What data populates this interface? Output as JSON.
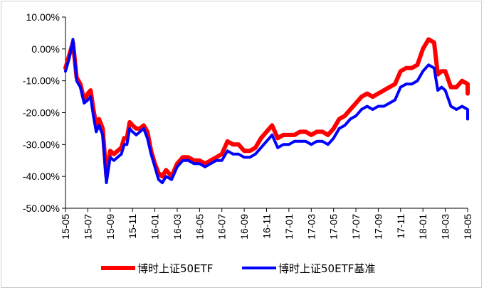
{
  "chart_data": {
    "type": "line",
    "title": "",
    "xlabel": "",
    "ylabel": "",
    "ylim": [
      -0.5,
      0.1
    ],
    "y_ticks": [
      "10.00%",
      "0.00%",
      "-10.00%",
      "-20.00%",
      "-30.00%",
      "-40.00%",
      "-50.00%"
    ],
    "x_ticks": [
      "15-05",
      "15-07",
      "15-09",
      "15-11",
      "16-01",
      "16-03",
      "16-05",
      "16-07",
      "16-09",
      "16-11",
      "17-01",
      "17-03",
      "17-05",
      "17-07",
      "17-09",
      "17-11",
      "18-01",
      "18-03",
      "18-05"
    ],
    "grid": false,
    "legend_position": "bottom",
    "series": [
      {
        "name": "博时上证50ETF",
        "color": "#ff0000",
        "points": [
          [
            "15-05",
            -0.06
          ],
          [
            "15-05",
            -0.02
          ],
          [
            "15-05",
            0.02
          ],
          [
            "15-06",
            -0.09
          ],
          [
            "15-06",
            -0.11
          ],
          [
            "15-06",
            -0.16
          ],
          [
            "15-07",
            -0.14
          ],
          [
            "15-07",
            -0.13
          ],
          [
            "15-07",
            -0.19
          ],
          [
            "15-07",
            -0.24
          ],
          [
            "15-08",
            -0.22
          ],
          [
            "15-08",
            -0.25
          ],
          [
            "15-08",
            -0.4
          ],
          [
            "15-09",
            -0.32
          ],
          [
            "15-09",
            -0.33
          ],
          [
            "15-09",
            -0.32
          ],
          [
            "15-10",
            -0.31
          ],
          [
            "15-10",
            -0.28
          ],
          [
            "15-10",
            -0.28
          ],
          [
            "15-10",
            -0.23
          ],
          [
            "15-11",
            -0.24
          ],
          [
            "15-11",
            -0.25
          ],
          [
            "15-11",
            -0.25
          ],
          [
            "15-12",
            -0.24
          ],
          [
            "15-12",
            -0.26
          ],
          [
            "15-12",
            -0.32
          ],
          [
            "16-01",
            -0.36
          ],
          [
            "16-01",
            -0.39
          ],
          [
            "16-01",
            -0.4
          ],
          [
            "16-02",
            -0.38
          ],
          [
            "16-02",
            -0.4
          ],
          [
            "16-03",
            -0.36
          ],
          [
            "16-03",
            -0.34
          ],
          [
            "16-04",
            -0.34
          ],
          [
            "16-04",
            -0.35
          ],
          [
            "16-05",
            -0.35
          ],
          [
            "16-05",
            -0.36
          ],
          [
            "16-06",
            -0.35
          ],
          [
            "16-06",
            -0.34
          ],
          [
            "16-07",
            -0.33
          ],
          [
            "16-07",
            -0.29
          ],
          [
            "16-08",
            -0.3
          ],
          [
            "16-08",
            -0.3
          ],
          [
            "16-09",
            -0.32
          ],
          [
            "16-09",
            -0.32
          ],
          [
            "16-10",
            -0.31
          ],
          [
            "16-10",
            -0.28
          ],
          [
            "16-11",
            -0.26
          ],
          [
            "16-11",
            -0.24
          ],
          [
            "16-12",
            -0.28
          ],
          [
            "16-12",
            -0.27
          ],
          [
            "17-01",
            -0.27
          ],
          [
            "17-01",
            -0.27
          ],
          [
            "17-02",
            -0.26
          ],
          [
            "17-02",
            -0.26
          ],
          [
            "17-03",
            -0.27
          ],
          [
            "17-03",
            -0.26
          ],
          [
            "17-04",
            -0.26
          ],
          [
            "17-04",
            -0.27
          ],
          [
            "17-05",
            -0.25
          ],
          [
            "17-05",
            -0.22
          ],
          [
            "17-06",
            -0.21
          ],
          [
            "17-06",
            -0.19
          ],
          [
            "17-07",
            -0.17
          ],
          [
            "17-07",
            -0.15
          ],
          [
            "17-08",
            -0.14
          ],
          [
            "17-08",
            -0.15
          ],
          [
            "17-09",
            -0.14
          ],
          [
            "17-09",
            -0.13
          ],
          [
            "17-10",
            -0.12
          ],
          [
            "17-10",
            -0.11
          ],
          [
            "17-11",
            -0.07
          ],
          [
            "17-11",
            -0.06
          ],
          [
            "17-12",
            -0.06
          ],
          [
            "17-12",
            -0.05
          ],
          [
            "18-01",
            0.0
          ],
          [
            "18-01",
            0.03
          ],
          [
            "18-02",
            0.02
          ],
          [
            "18-02",
            -0.08
          ],
          [
            "18-02",
            -0.07
          ],
          [
            "18-03",
            -0.07
          ],
          [
            "18-03",
            -0.12
          ],
          [
            "18-04",
            -0.12
          ],
          [
            "18-04",
            -0.1
          ],
          [
            "18-05",
            -0.11
          ],
          [
            "18-05",
            -0.14
          ]
        ]
      },
      {
        "name": "博时上证50ETF基准",
        "color": "#0000ff",
        "points": [
          [
            "15-05",
            -0.07
          ],
          [
            "15-05",
            -0.03
          ],
          [
            "15-05",
            0.03
          ],
          [
            "15-06",
            -0.1
          ],
          [
            "15-06",
            -0.12
          ],
          [
            "15-06",
            -0.17
          ],
          [
            "15-07",
            -0.16
          ],
          [
            "15-07",
            -0.15
          ],
          [
            "15-07",
            -0.21
          ],
          [
            "15-07",
            -0.26
          ],
          [
            "15-08",
            -0.24
          ],
          [
            "15-08",
            -0.27
          ],
          [
            "15-08",
            -0.42
          ],
          [
            "15-09",
            -0.34
          ],
          [
            "15-09",
            -0.35
          ],
          [
            "15-09",
            -0.34
          ],
          [
            "15-10",
            -0.33
          ],
          [
            "15-10",
            -0.3
          ],
          [
            "15-10",
            -0.3
          ],
          [
            "15-10",
            -0.25
          ],
          [
            "15-11",
            -0.26
          ],
          [
            "15-11",
            -0.27
          ],
          [
            "15-11",
            -0.26
          ],
          [
            "15-12",
            -0.25
          ],
          [
            "15-12",
            -0.28
          ],
          [
            "15-12",
            -0.33
          ],
          [
            "16-01",
            -0.37
          ],
          [
            "16-01",
            -0.41
          ],
          [
            "16-01",
            -0.42
          ],
          [
            "16-02",
            -0.4
          ],
          [
            "16-02",
            -0.41
          ],
          [
            "16-03",
            -0.37
          ],
          [
            "16-03",
            -0.35
          ],
          [
            "16-04",
            -0.35
          ],
          [
            "16-04",
            -0.36
          ],
          [
            "16-05",
            -0.36
          ],
          [
            "16-05",
            -0.37
          ],
          [
            "16-06",
            -0.36
          ],
          [
            "16-06",
            -0.35
          ],
          [
            "16-07",
            -0.35
          ],
          [
            "16-07",
            -0.32
          ],
          [
            "16-08",
            -0.33
          ],
          [
            "16-08",
            -0.33
          ],
          [
            "16-09",
            -0.34
          ],
          [
            "16-09",
            -0.34
          ],
          [
            "16-10",
            -0.33
          ],
          [
            "16-10",
            -0.31
          ],
          [
            "16-11",
            -0.29
          ],
          [
            "16-11",
            -0.27
          ],
          [
            "16-12",
            -0.31
          ],
          [
            "16-12",
            -0.3
          ],
          [
            "17-01",
            -0.3
          ],
          [
            "17-01",
            -0.29
          ],
          [
            "17-02",
            -0.29
          ],
          [
            "17-02",
            -0.29
          ],
          [
            "17-03",
            -0.3
          ],
          [
            "17-03",
            -0.29
          ],
          [
            "17-04",
            -0.29
          ],
          [
            "17-04",
            -0.3
          ],
          [
            "17-05",
            -0.28
          ],
          [
            "17-05",
            -0.25
          ],
          [
            "17-06",
            -0.24
          ],
          [
            "17-06",
            -0.22
          ],
          [
            "17-07",
            -0.21
          ],
          [
            "17-07",
            -0.19
          ],
          [
            "17-08",
            -0.18
          ],
          [
            "17-08",
            -0.19
          ],
          [
            "17-09",
            -0.18
          ],
          [
            "17-09",
            -0.18
          ],
          [
            "17-10",
            -0.17
          ],
          [
            "17-10",
            -0.16
          ],
          [
            "17-11",
            -0.12
          ],
          [
            "17-11",
            -0.11
          ],
          [
            "17-12",
            -0.11
          ],
          [
            "17-12",
            -0.1
          ],
          [
            "18-01",
            -0.07
          ],
          [
            "18-01",
            -0.05
          ],
          [
            "18-02",
            -0.06
          ],
          [
            "18-02",
            -0.13
          ],
          [
            "18-02",
            -0.12
          ],
          [
            "18-03",
            -0.13
          ],
          [
            "18-03",
            -0.18
          ],
          [
            "18-04",
            -0.19
          ],
          [
            "18-04",
            -0.18
          ],
          [
            "18-05",
            -0.19
          ],
          [
            "18-05",
            -0.22
          ]
        ]
      }
    ]
  }
}
